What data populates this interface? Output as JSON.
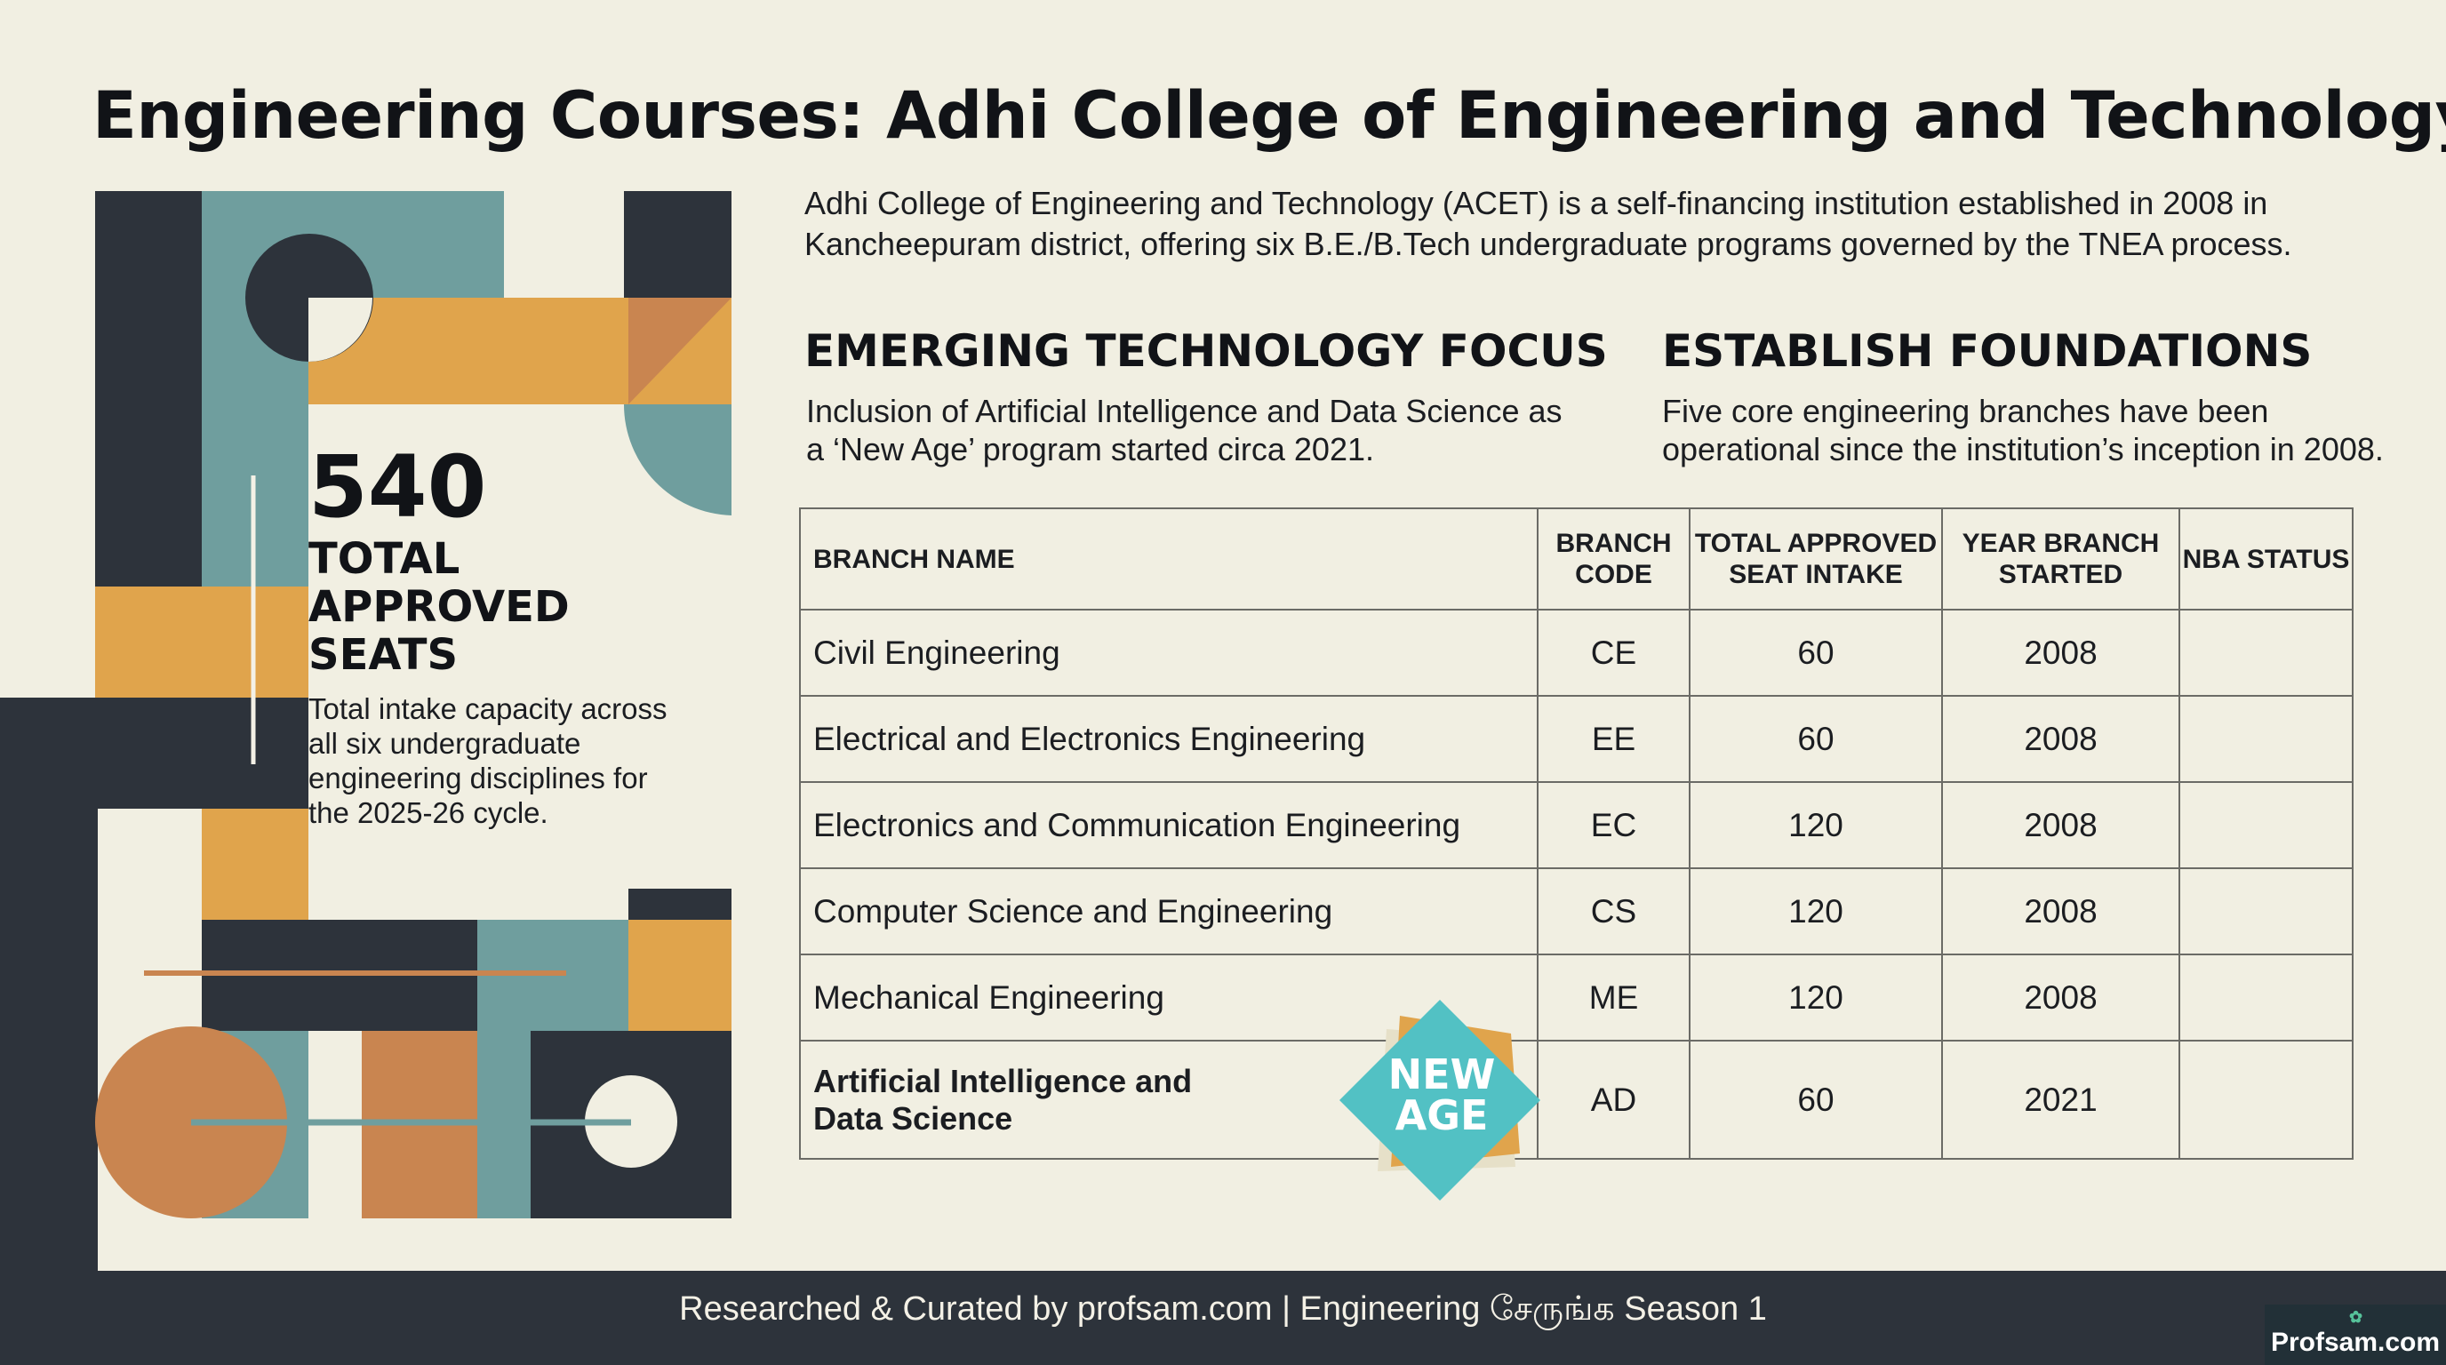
{
  "title": "Engineering Courses: Adhi College of Engineering and Technology",
  "intro": "Adhi College of Engineering and Technology (ACET) is a self-financing institution established in 2008 in Kancheepuram district, offering six B.E./B.Tech undergraduate programs governed by the TNEA process.",
  "stat": {
    "number": "540",
    "label_lines": [
      "TOTAL",
      "APPROVED",
      "SEATS"
    ],
    "description": "Total intake capacity across all six undergraduate engineering disciplines for the 2025-26 cycle."
  },
  "focus": [
    {
      "title": "EMERGING TECHNOLOGY FOCUS",
      "description": "Inclusion of Artificial Intelligence and Data Science as a ‘New Age’ program started circa 2021."
    },
    {
      "title": "ESTABLISH FOUNDATIONS",
      "description": "Five core engineering branches have been operational since the institution’s inception in 2008."
    }
  ],
  "table": {
    "headers": [
      "BRANCH NAME",
      "BRANCH CODE",
      "TOTAL APPROVED SEAT INTAKE",
      "YEAR BRANCH STARTED",
      "NBA STATUS"
    ],
    "rows": [
      [
        "Civil Engineering",
        "CE",
        "60",
        "2008",
        ""
      ],
      [
        "Electrical and Electronics Engineering",
        "EE",
        "60",
        "2008",
        ""
      ],
      [
        "Electronics and Communication Engineering",
        "EC",
        "120",
        "2008",
        ""
      ],
      [
        "Computer Science and Engineering",
        "CS",
        "120",
        "2008",
        ""
      ],
      [
        "Mechanical Engineering",
        "ME",
        "120",
        "2008",
        ""
      ],
      [
        "Artificial Intelligence and Data Science",
        "AD",
        "60",
        "2021",
        ""
      ]
    ]
  },
  "badge": {
    "line1": "NEW",
    "line2": "AGE"
  },
  "footer": "Researched & Curated by profsam.com | Engineering சேருங்க Season 1",
  "logo": "Profsam.com",
  "colors": {
    "navy": "#2d333b",
    "teal": "#6f9e9e",
    "gold": "#e0a44c",
    "rust": "#c98550",
    "cream": "#f1efe2",
    "badge_teal": "#52c1c4"
  }
}
